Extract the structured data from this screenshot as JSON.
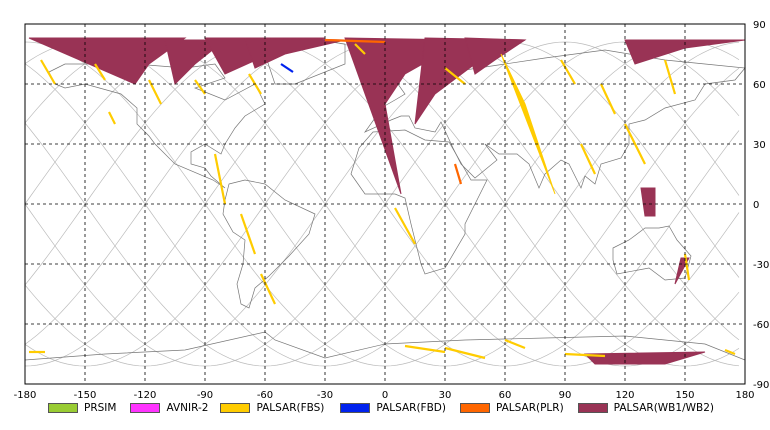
{
  "map": {
    "lon_range": [
      -180,
      180
    ],
    "lat_range": [
      -90,
      90
    ],
    "x_ticks": [
      "-180",
      "-150",
      "-120",
      "-90",
      "-60",
      "-30",
      "0",
      "30",
      "60",
      "90",
      "120",
      "150",
      "180"
    ],
    "y_ticks": [
      "90",
      "60",
      "30",
      "0",
      "-30",
      "-60",
      "-90"
    ],
    "grid": true,
    "orbit_track_count": 12
  },
  "legend": [
    {
      "label": "PRSIM",
      "color": "#99cc33"
    },
    {
      "label": "AVNIR-2",
      "color": "#ff33ff"
    },
    {
      "label": "PALSAR(FBS)",
      "color": "#ffcc00"
    },
    {
      "label": "PALSAR(FBD)",
      "color": "#0022ee"
    },
    {
      "label": "PALSAR(PLR)",
      "color": "#ff6600"
    },
    {
      "label": "PALSAR(WB1/WB2)",
      "color": "#993355"
    }
  ],
  "chart_data": {
    "type": "map",
    "xlim": [
      -180,
      180
    ],
    "ylim": [
      -90,
      90
    ],
    "xticks": [
      -180,
      -150,
      -120,
      -90,
      -60,
      -30,
      0,
      30,
      60,
      90,
      120,
      150,
      180
    ],
    "yticks": [
      90,
      60,
      30,
      0,
      -30,
      -60,
      -90
    ],
    "grid": true,
    "legend_position": "bottom",
    "series": [
      {
        "name": "PALSAR(WB1/WB2)",
        "color": "#993355",
        "swaths": [
          [
            [
              -178,
              83
            ],
            [
              -100,
              83
            ],
            [
              -118,
              70
            ],
            [
              -125,
              60
            ]
          ],
          [
            [
              -110,
              82
            ],
            [
              -80,
              82
            ],
            [
              -95,
              70
            ],
            [
              -105,
              60
            ]
          ],
          [
            [
              -90,
              83
            ],
            [
              -30,
              83
            ],
            [
              -60,
              74
            ],
            [
              -80,
              65
            ]
          ],
          [
            [
              -70,
              83
            ],
            [
              -20,
              82
            ],
            [
              -50,
              75
            ],
            [
              -65,
              68
            ]
          ],
          [
            [
              -20,
              83
            ],
            [
              40,
              82
            ],
            [
              10,
              65
            ],
            [
              0,
              50
            ],
            [
              8,
              5
            ]
          ],
          [
            [
              20,
              83
            ],
            [
              70,
              82
            ],
            [
              45,
              70
            ],
            [
              25,
              55
            ],
            [
              15,
              40
            ]
          ],
          [
            [
              40,
              83
            ],
            [
              70,
              82
            ],
            [
              55,
              72
            ],
            [
              45,
              65
            ]
          ],
          [
            [
              120,
              82
            ],
            [
              180,
              82
            ],
            [
              150,
              78
            ],
            [
              125,
              70
            ]
          ],
          [
            [
              128,
              8
            ],
            [
              135,
              8
            ],
            [
              135,
              -6
            ],
            [
              130,
              -6
            ]
          ],
          [
            [
              148,
              -27
            ],
            [
              152,
              -27
            ],
            [
              145,
              -40
            ]
          ],
          [
            [
              100,
              -75
            ],
            [
              160,
              -74
            ],
            [
              140,
              -80
            ],
            [
              105,
              -80
            ]
          ]
        ]
      },
      {
        "name": "PALSAR(FBS)",
        "color": "#ffcc00",
        "swaths": [
          [
            [
              -172,
              72
            ],
            [
              -165,
              60
            ]
          ],
          [
            [
              -145,
              70
            ],
            [
              -140,
              62
            ]
          ],
          [
            [
              -138,
              46
            ],
            [
              -135,
              40
            ]
          ],
          [
            [
              -118,
              62
            ],
            [
              -112,
              50
            ]
          ],
          [
            [
              -95,
              62
            ],
            [
              -90,
              55
            ]
          ],
          [
            [
              -85,
              25
            ],
            [
              -80,
              0
            ]
          ],
          [
            [
              -68,
              65
            ],
            [
              -62,
              55
            ]
          ],
          [
            [
              -72,
              -5
            ],
            [
              -65,
              -25
            ]
          ],
          [
            [
              -62,
              -35
            ],
            [
              -55,
              -50
            ]
          ],
          [
            [
              -15,
              80
            ],
            [
              -10,
              75
            ]
          ],
          [
            [
              5,
              -2
            ],
            [
              15,
              -20
            ]
          ],
          [
            [
              30,
              68
            ],
            [
              40,
              60
            ]
          ],
          [
            [
              58,
              75
            ],
            [
              70,
              50
            ],
            [
              80,
              20
            ],
            [
              85,
              5
            ]
          ],
          [
            [
              88,
              72
            ],
            [
              95,
              60
            ]
          ],
          [
            [
              98,
              30
            ],
            [
              105,
              15
            ]
          ],
          [
            [
              108,
              60
            ],
            [
              115,
              45
            ]
          ],
          [
            [
              120,
              40
            ],
            [
              130,
              20
            ]
          ],
          [
            [
              140,
              72
            ],
            [
              145,
              55
            ]
          ],
          [
            [
              150,
              -25
            ],
            [
              152,
              -38
            ]
          ],
          [
            [
              10,
              -71
            ],
            [
              30,
              -74
            ]
          ],
          [
            [
              30,
              -72
            ],
            [
              50,
              -77
            ]
          ],
          [
            [
              60,
              -68
            ],
            [
              70,
              -72
            ]
          ],
          [
            [
              90,
              -75
            ],
            [
              110,
              -76
            ]
          ],
          [
            [
              -178,
              -74
            ],
            [
              -170,
              -74
            ]
          ],
          [
            [
              170,
              -73
            ],
            [
              175,
              -75
            ]
          ]
        ]
      },
      {
        "name": "PALSAR(FBD)",
        "color": "#0022ee",
        "swaths": [
          [
            [
              -52,
              70
            ],
            [
              -46,
              66
            ]
          ]
        ]
      },
      {
        "name": "PALSAR(PLR)",
        "color": "#ff6600",
        "swaths": [
          [
            [
              -30,
              82
            ],
            [
              0,
              81
            ]
          ],
          [
            [
              35,
              20
            ],
            [
              38,
              10
            ]
          ]
        ]
      },
      {
        "name": "PRSIM",
        "color": "#99cc33",
        "swaths": []
      },
      {
        "name": "AVNIR-2",
        "color": "#ff33ff",
        "swaths": []
      }
    ]
  }
}
